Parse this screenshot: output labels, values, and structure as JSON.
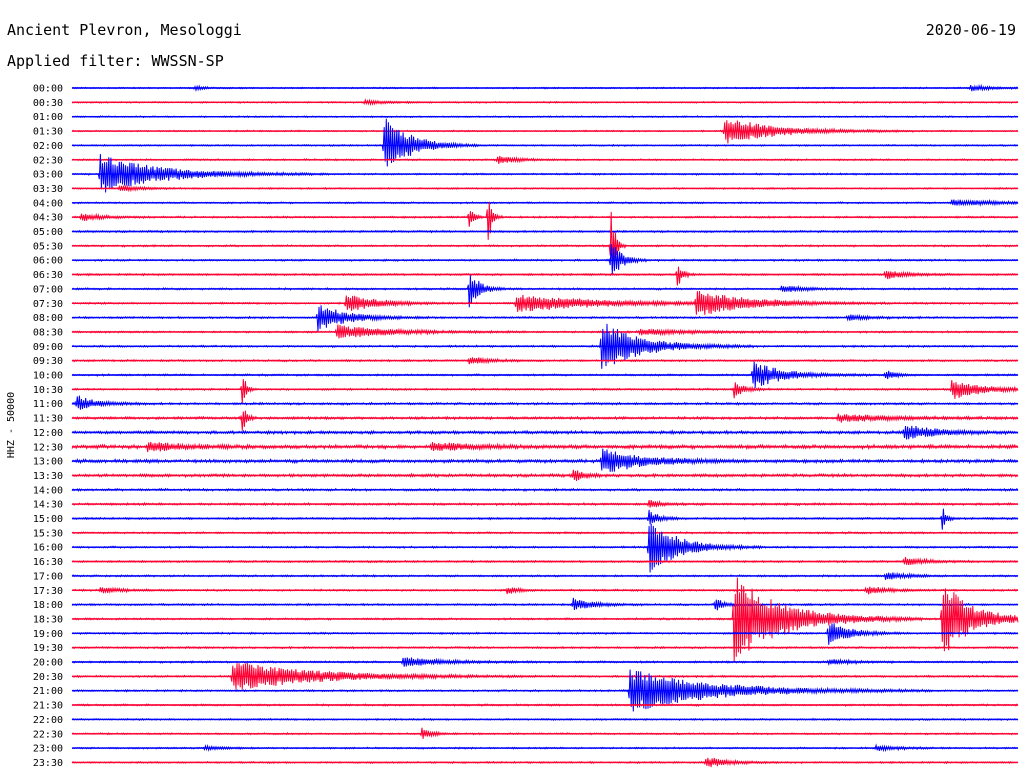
{
  "header": {
    "station": "Ancient Plevron, Mesologgi",
    "date": "2020-06-19",
    "filter_label": "Applied filter: WWSSN-SP"
  },
  "chart_data": {
    "type": "helicorder",
    "ylabel": "HHZ - 50000",
    "colors": [
      "#0000ff",
      "#ff0033"
    ],
    "rows": [
      {
        "label": "00:00",
        "noise": 0.8,
        "events": [
          {
            "t": 0.13,
            "amp": 2,
            "dur": 0.01
          },
          {
            "t": 0.95,
            "amp": 3,
            "dur": 0.02
          }
        ]
      },
      {
        "label": "00:30",
        "noise": 0.8,
        "events": [
          {
            "t": 0.31,
            "amp": 2,
            "dur": 0.02
          }
        ]
      },
      {
        "label": "01:00",
        "noise": 0.8,
        "events": []
      },
      {
        "label": "01:30",
        "noise": 0.8,
        "events": [
          {
            "t": 0.69,
            "amp": 14,
            "dur": 0.05
          }
        ]
      },
      {
        "label": "02:00",
        "noise": 0.8,
        "events": [
          {
            "t": 0.33,
            "amp": 32,
            "dur": 0.025
          }
        ]
      },
      {
        "label": "02:30",
        "noise": 0.9,
        "events": [
          {
            "t": 0.45,
            "amp": 4,
            "dur": 0.02
          }
        ]
      },
      {
        "label": "03:00",
        "noise": 0.9,
        "events": [
          {
            "t": 0.03,
            "amp": 20,
            "dur": 0.06
          }
        ]
      },
      {
        "label": "03:30",
        "noise": 0.8,
        "events": [
          {
            "t": 0.05,
            "amp": 3,
            "dur": 0.02
          }
        ]
      },
      {
        "label": "04:00",
        "noise": 0.9,
        "events": [
          {
            "t": 0.93,
            "amp": 3,
            "dur": 0.05
          }
        ]
      },
      {
        "label": "04:30",
        "noise": 1.0,
        "events": [
          {
            "t": 0.01,
            "amp": 4,
            "dur": 0.02
          },
          {
            "t": 0.42,
            "amp": 14,
            "dur": 0.004
          },
          {
            "t": 0.44,
            "amp": 14,
            "dur": 0.004
          },
          {
            "t": 0.44,
            "amp": 14,
            "dur": 0.004
          }
        ]
      },
      {
        "label": "05:00",
        "noise": 1.0,
        "events": []
      },
      {
        "label": "05:30",
        "noise": 1.0,
        "events": [
          {
            "t": 0.57,
            "amp": 40,
            "dur": 0.004
          }
        ]
      },
      {
        "label": "06:00",
        "noise": 1.0,
        "events": [
          {
            "t": 0.57,
            "amp": 20,
            "dur": 0.01
          }
        ]
      },
      {
        "label": "06:30",
        "noise": 1.0,
        "events": [
          {
            "t": 0.64,
            "amp": 14,
            "dur": 0.005
          },
          {
            "t": 0.86,
            "amp": 5,
            "dur": 0.02
          }
        ]
      },
      {
        "label": "07:00",
        "noise": 1.0,
        "events": [
          {
            "t": 0.42,
            "amp": 20,
            "dur": 0.01
          },
          {
            "t": 0.75,
            "amp": 4,
            "dur": 0.02
          }
        ]
      },
      {
        "label": "07:30",
        "noise": 1.0,
        "events": [
          {
            "t": 0.29,
            "amp": 10,
            "dur": 0.03
          },
          {
            "t": 0.47,
            "amp": 9,
            "dur": 0.08
          },
          {
            "t": 0.66,
            "amp": 13,
            "dur": 0.05
          }
        ]
      },
      {
        "label": "08:00",
        "noise": 1.0,
        "events": [
          {
            "t": 0.26,
            "amp": 14,
            "dur": 0.03
          },
          {
            "t": 0.82,
            "amp": 3,
            "dur": 0.02
          }
        ]
      },
      {
        "label": "08:30",
        "noise": 1.0,
        "events": [
          {
            "t": 0.28,
            "amp": 7,
            "dur": 0.05
          },
          {
            "t": 0.6,
            "amp": 3,
            "dur": 0.05
          }
        ]
      },
      {
        "label": "09:00",
        "noise": 1.0,
        "events": [
          {
            "t": 0.56,
            "amp": 25,
            "dur": 0.04
          }
        ]
      },
      {
        "label": "09:30",
        "noise": 1.0,
        "events": [
          {
            "t": 0.42,
            "amp": 4,
            "dur": 0.02
          }
        ]
      },
      {
        "label": "10:00",
        "noise": 1.0,
        "events": [
          {
            "t": 0.72,
            "amp": 14,
            "dur": 0.03
          },
          {
            "t": 0.86,
            "amp": 5,
            "dur": 0.01
          }
        ]
      },
      {
        "label": "10:30",
        "noise": 1.0,
        "events": [
          {
            "t": 0.18,
            "amp": 18,
            "dur": 0.004
          },
          {
            "t": 0.7,
            "amp": 8,
            "dur": 0.01
          },
          {
            "t": 0.93,
            "amp": 10,
            "dur": 0.03
          }
        ]
      },
      {
        "label": "11:00",
        "noise": 1.2,
        "events": [
          {
            "t": 0.005,
            "amp": 8,
            "dur": 0.02
          }
        ]
      },
      {
        "label": "11:30",
        "noise": 1.4,
        "events": [
          {
            "t": 0.18,
            "amp": 14,
            "dur": 0.004
          },
          {
            "t": 0.81,
            "amp": 4,
            "dur": 0.05
          }
        ]
      },
      {
        "label": "12:00",
        "noise": 1.6,
        "events": [
          {
            "t": 0.88,
            "amp": 8,
            "dur": 0.03
          }
        ]
      },
      {
        "label": "12:30",
        "noise": 2.0,
        "events": [
          {
            "t": 0.08,
            "amp": 5,
            "dur": 0.03
          },
          {
            "t": 0.38,
            "amp": 4,
            "dur": 0.04
          }
        ]
      },
      {
        "label": "13:00",
        "noise": 1.8,
        "events": [
          {
            "t": 0.56,
            "amp": 13,
            "dur": 0.04
          }
        ]
      },
      {
        "label": "13:30",
        "noise": 1.6,
        "events": [
          {
            "t": 0.53,
            "amp": 7,
            "dur": 0.01
          }
        ]
      },
      {
        "label": "14:00",
        "noise": 1.2,
        "events": []
      },
      {
        "label": "14:30",
        "noise": 1.2,
        "events": [
          {
            "t": 0.61,
            "amp": 5,
            "dur": 0.01
          }
        ]
      },
      {
        "label": "15:00",
        "noise": 1.0,
        "events": [
          {
            "t": 0.61,
            "amp": 8,
            "dur": 0.01
          },
          {
            "t": 0.92,
            "amp": 12,
            "dur": 0.004
          }
        ]
      },
      {
        "label": "15:30",
        "noise": 1.0,
        "events": []
      },
      {
        "label": "16:00",
        "noise": 1.0,
        "events": [
          {
            "t": 0.61,
            "amp": 28,
            "dur": 0.03
          }
        ]
      },
      {
        "label": "16:30",
        "noise": 1.0,
        "events": [
          {
            "t": 0.88,
            "amp": 4,
            "dur": 0.02
          }
        ]
      },
      {
        "label": "17:00",
        "noise": 1.0,
        "events": [
          {
            "t": 0.86,
            "amp": 4,
            "dur": 0.02
          }
        ]
      },
      {
        "label": "17:30",
        "noise": 1.0,
        "events": [
          {
            "t": 0.03,
            "amp": 3,
            "dur": 0.02
          },
          {
            "t": 0.46,
            "amp": 4,
            "dur": 0.01
          },
          {
            "t": 0.84,
            "amp": 4,
            "dur": 0.02
          }
        ]
      },
      {
        "label": "18:00",
        "noise": 1.0,
        "events": [
          {
            "t": 0.53,
            "amp": 6,
            "dur": 0.02
          },
          {
            "t": 0.68,
            "amp": 6,
            "dur": 0.01
          }
        ]
      },
      {
        "label": "18:30",
        "noise": 1.0,
        "events": [
          {
            "t": 0.7,
            "amp": 44,
            "dur": 0.05
          },
          {
            "t": 0.92,
            "amp": 40,
            "dur": 0.03
          }
        ]
      },
      {
        "label": "19:00",
        "noise": 1.0,
        "events": [
          {
            "t": 0.8,
            "amp": 14,
            "dur": 0.02
          }
        ]
      },
      {
        "label": "19:30",
        "noise": 1.0,
        "events": []
      },
      {
        "label": "20:00",
        "noise": 1.0,
        "events": [
          {
            "t": 0.35,
            "amp": 5,
            "dur": 0.04
          },
          {
            "t": 0.8,
            "amp": 3,
            "dur": 0.02
          }
        ]
      },
      {
        "label": "20:30",
        "noise": 1.0,
        "events": [
          {
            "t": 0.17,
            "amp": 16,
            "dur": 0.08
          }
        ]
      },
      {
        "label": "21:00",
        "noise": 1.0,
        "events": [
          {
            "t": 0.59,
            "amp": 22,
            "dur": 0.08
          }
        ]
      },
      {
        "label": "21:30",
        "noise": 1.0,
        "events": []
      },
      {
        "label": "22:00",
        "noise": 0.9,
        "events": []
      },
      {
        "label": "22:30",
        "noise": 0.9,
        "events": [
          {
            "t": 0.37,
            "amp": 6,
            "dur": 0.01
          }
        ]
      },
      {
        "label": "23:00",
        "noise": 0.9,
        "events": [
          {
            "t": 0.14,
            "amp": 2,
            "dur": 0.02
          },
          {
            "t": 0.85,
            "amp": 3,
            "dur": 0.02
          }
        ]
      },
      {
        "label": "23:30",
        "noise": 0.9,
        "events": [
          {
            "t": 0.67,
            "amp": 6,
            "dur": 0.02
          }
        ]
      }
    ]
  }
}
